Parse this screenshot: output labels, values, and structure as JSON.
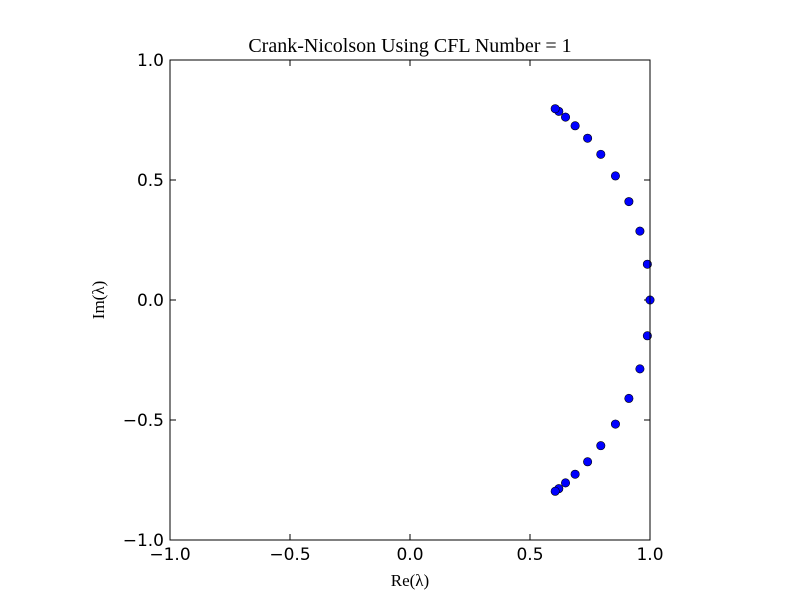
{
  "chart_data": {
    "type": "scatter",
    "title": "Crank-Nicolson Using CFL Number = 1",
    "xlabel": "Re(λ)",
    "ylabel": "Im(λ)",
    "xlim": [
      -1.0,
      1.0
    ],
    "ylim": [
      -1.0,
      1.0
    ],
    "xticks": [
      -1.0,
      -0.5,
      0.0,
      0.5,
      1.0
    ],
    "xtick_labels": [
      "−1.0",
      "−0.5",
      "0.0",
      "0.5",
      "1.0"
    ],
    "yticks": [
      -1.0,
      -0.5,
      0.0,
      0.5,
      1.0
    ],
    "ytick_labels": [
      "−1.0",
      "−0.5",
      "0.0",
      "0.5",
      "1.0"
    ],
    "grid": false,
    "marker_color": "#0000ff",
    "marker_edge_color": "#000000",
    "points": [
      {
        "x": 1.0,
        "y": 0.0
      },
      {
        "x": 0.989,
        "y": 0.149
      },
      {
        "x": 0.958,
        "y": 0.287
      },
      {
        "x": 0.912,
        "y": 0.41
      },
      {
        "x": 0.856,
        "y": 0.517
      },
      {
        "x": 0.795,
        "y": 0.607
      },
      {
        "x": 0.74,
        "y": 0.674
      },
      {
        "x": 0.688,
        "y": 0.726
      },
      {
        "x": 0.648,
        "y": 0.762
      },
      {
        "x": 0.62,
        "y": 0.786
      },
      {
        "x": 0.605,
        "y": 0.797
      },
      {
        "x": 0.989,
        "y": -0.149
      },
      {
        "x": 0.958,
        "y": -0.287
      },
      {
        "x": 0.912,
        "y": -0.41
      },
      {
        "x": 0.856,
        "y": -0.517
      },
      {
        "x": 0.795,
        "y": -0.607
      },
      {
        "x": 0.74,
        "y": -0.674
      },
      {
        "x": 0.688,
        "y": -0.726
      },
      {
        "x": 0.648,
        "y": -0.762
      },
      {
        "x": 0.62,
        "y": -0.786
      },
      {
        "x": 0.605,
        "y": -0.797
      }
    ]
  }
}
